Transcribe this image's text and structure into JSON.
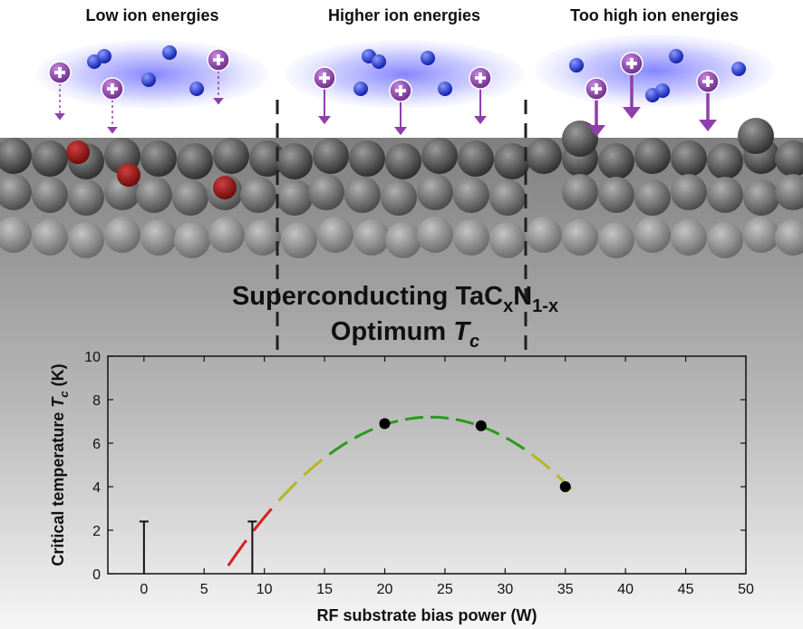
{
  "headers": {
    "low": "Low ion energies",
    "higher": "Higher ion energies",
    "too_high": "Too high ion energies"
  },
  "title": {
    "line1_main": "Superconducting TaC",
    "line1_sub1": "x",
    "line1_mid": "N",
    "line1_sub2": "1-x",
    "line2_main": "Optimum ",
    "line2_italic": "T",
    "line2_sub": "c"
  },
  "colors": {
    "ion": "#8e3fa9",
    "neutral": "#2233dd",
    "impurity": "#8b1111",
    "fit_red": "#d42020",
    "fit_yellow": "#b5b520",
    "fit_green": "#2a9a1a"
  },
  "chart_data": {
    "type": "scatter",
    "xlabel": "RF substrate bias power (W)",
    "ylabel_main": "Critical temperature ",
    "ylabel_italic": "T",
    "ylabel_sub": "c",
    "ylabel_unit": " (K)",
    "xlim": [
      -3,
      50
    ],
    "ylim": [
      0,
      10
    ],
    "xticks": [
      0,
      5,
      10,
      15,
      20,
      25,
      30,
      35,
      40,
      45,
      50
    ],
    "yticks": [
      0,
      2,
      4,
      6,
      8,
      10
    ],
    "points": [
      {
        "x": 20,
        "y": 6.9
      },
      {
        "x": 28,
        "y": 6.8
      },
      {
        "x": 35,
        "y": 4.0
      }
    ],
    "upper_limit_bars": [
      {
        "x": 0,
        "y": 2.4
      },
      {
        "x": 9,
        "y": 2.4
      }
    ],
    "fit_curve": {
      "vertex_x": 23.8,
      "vertex_y": 7.2,
      "curvature": -0.0242,
      "x_start": 7.0,
      "x_end": 35.5
    }
  }
}
